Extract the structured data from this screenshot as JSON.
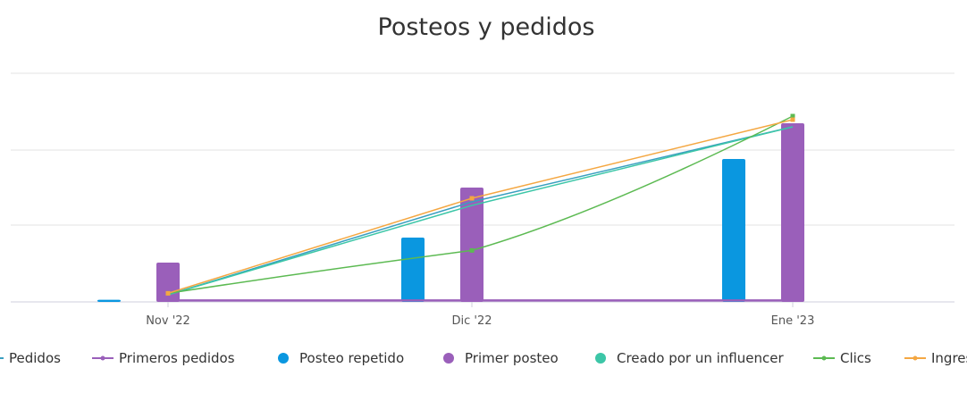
{
  "chart_data": {
    "type": "bar",
    "title": "Posteos y pedidos",
    "categories": [
      "Nov '22",
      "Dic '22",
      "Ene '23"
    ],
    "ylim": [
      0,
      3.2
    ],
    "grid": true,
    "legend_position": "bottom",
    "bar_series": [
      {
        "name": "Posteo repetido",
        "values": [
          0.03,
          0.9,
          2.0
        ],
        "color": "#0a97e0"
      },
      {
        "name": "Primer posteo",
        "values": [
          0.55,
          1.6,
          2.5
        ],
        "color": "#9a5fba"
      }
    ],
    "line_series": [
      {
        "name": "Pedidos",
        "values": [
          0.1,
          1.4,
          2.45
        ],
        "color": "#3a9fc0"
      },
      {
        "name": "Primeros pedidos",
        "values": [
          0.02,
          0.02,
          0.02
        ],
        "color": "#9a5fba"
      },
      {
        "name": "Creado por un influencer",
        "values": [
          0.1,
          1.35,
          2.45
        ],
        "color": "#3cc6a7"
      },
      {
        "name": "Clics",
        "values": [
          0.12,
          0.72,
          2.6
        ],
        "color": "#5cba52"
      },
      {
        "name": "Ingres",
        "values": [
          0.12,
          1.45,
          2.55
        ],
        "color": "#f4a742"
      }
    ],
    "legend": [
      {
        "label": "Pedidos",
        "kind": "line",
        "color": "#3a9fc0"
      },
      {
        "label": "Primeros pedidos",
        "kind": "line",
        "color": "#9a5fba"
      },
      {
        "label": "Posteo repetido",
        "kind": "dot",
        "color": "#0a97e0"
      },
      {
        "label": "Primer posteo",
        "kind": "dot",
        "color": "#9a5fba"
      },
      {
        "label": "Creado por un influencer",
        "kind": "dot",
        "color": "#3cc6a7"
      },
      {
        "label": "Clics",
        "kind": "line",
        "color": "#5cba52"
      },
      {
        "label": "Ingres",
        "kind": "line",
        "color": "#f4a742"
      }
    ]
  }
}
